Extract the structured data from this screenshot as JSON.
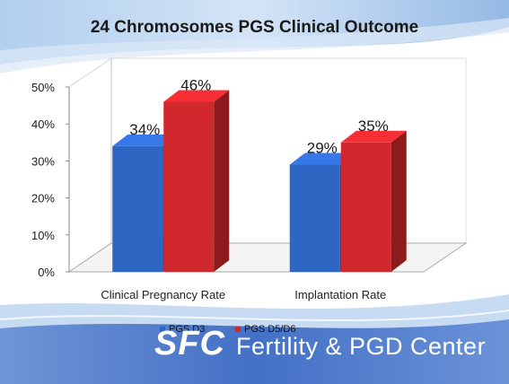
{
  "chart_data": {
    "type": "bar",
    "title": "24 Chromosomes PGS Clinical Outcome",
    "categories": [
      "Clinical Pregnancy Rate",
      "Implantation Rate"
    ],
    "series": [
      {
        "name": "PGS D3",
        "values": [
          34,
          29
        ],
        "labels": [
          "34%",
          "29%"
        ],
        "color": "#2e66c4"
      },
      {
        "name": "PGS D5/D6",
        "values": [
          46,
          35
        ],
        "labels": [
          "46%",
          "35%"
        ],
        "color": "#d0282c"
      }
    ],
    "yticks": [
      "0%",
      "10%",
      "20%",
      "30%",
      "40%",
      "50%"
    ],
    "ylim": [
      0,
      50
    ],
    "legend_position": "bottom",
    "grid": false,
    "xlabel": "",
    "ylabel": ""
  },
  "brand": {
    "mark": "SFC",
    "name": "Fertility & PGD Center"
  },
  "colors": {
    "accent_blue": "#2e66c4",
    "accent_red": "#d0282c",
    "banner": "#4f7fcf"
  }
}
